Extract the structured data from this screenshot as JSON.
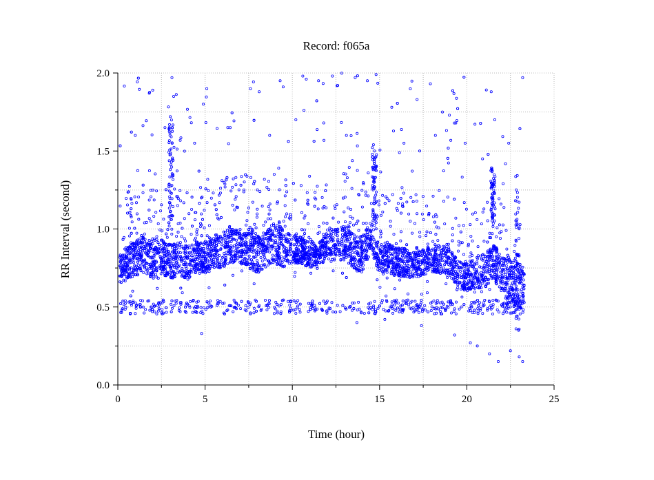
{
  "chart_data": {
    "type": "scatter",
    "title": "Record:  f065a",
    "xlabel": "Time (hour)",
    "ylabel": "RR Interval (second)",
    "xlim": [
      0,
      25
    ],
    "ylim": [
      0,
      2.0
    ],
    "xticks": [
      0,
      5,
      10,
      15,
      20,
      25
    ],
    "xtick_labels": [
      "0",
      "5",
      "10",
      "15",
      "20",
      "25"
    ],
    "xminor": [
      2.5,
      7.5,
      12.5,
      17.5,
      22.5
    ],
    "yticks": [
      0,
      0.5,
      1.0,
      1.5,
      2.0
    ],
    "ytick_labels": [
      "0.0",
      "0.5",
      "1.0",
      "1.5",
      "2.0"
    ],
    "yminor": [
      0.25,
      0.75,
      1.25,
      1.75
    ],
    "grid": true,
    "marker_color": "#0000ff",
    "series": [
      {
        "name": "",
        "x_range": [
          0.1,
          23.3
        ],
        "band": [
          [
            0.1,
            0.65,
            0.85
          ],
          [
            0.5,
            0.68,
            0.88
          ],
          [
            1.0,
            0.7,
            0.92
          ],
          [
            1.5,
            0.72,
            0.95
          ],
          [
            2.0,
            0.68,
            0.92
          ],
          [
            2.5,
            0.7,
            0.95
          ],
          [
            3.0,
            0.68,
            0.9
          ],
          [
            3.5,
            0.7,
            0.92
          ],
          [
            4.0,
            0.68,
            0.9
          ],
          [
            4.5,
            0.72,
            0.92
          ],
          [
            5.0,
            0.7,
            0.92
          ],
          [
            5.5,
            0.75,
            0.95
          ],
          [
            6.0,
            0.75,
            0.98
          ],
          [
            6.5,
            0.78,
            1.0
          ],
          [
            7.0,
            0.78,
            1.0
          ],
          [
            7.5,
            0.75,
            1.0
          ],
          [
            8.0,
            0.72,
            0.95
          ],
          [
            8.5,
            0.75,
            0.98
          ],
          [
            9.0,
            0.78,
            1.05
          ],
          [
            9.5,
            0.75,
            1.0
          ],
          [
            10.0,
            0.78,
            0.95
          ],
          [
            10.5,
            0.78,
            0.95
          ],
          [
            11.0,
            0.75,
            0.9
          ],
          [
            11.5,
            0.78,
            0.92
          ],
          [
            12.0,
            0.8,
            0.98
          ],
          [
            12.5,
            0.8,
            1.0
          ],
          [
            13.0,
            0.8,
            1.02
          ],
          [
            13.5,
            0.75,
            0.98
          ],
          [
            14.0,
            0.72,
            0.95
          ],
          [
            14.5,
            0.85,
            1.05
          ],
          [
            15.0,
            0.7,
            0.9
          ],
          [
            15.5,
            0.72,
            0.92
          ],
          [
            16.0,
            0.7,
            0.88
          ],
          [
            16.5,
            0.68,
            0.88
          ],
          [
            17.0,
            0.68,
            0.85
          ],
          [
            17.5,
            0.7,
            0.88
          ],
          [
            18.0,
            0.72,
            0.88
          ],
          [
            18.5,
            0.72,
            0.9
          ],
          [
            19.0,
            0.7,
            0.88
          ],
          [
            19.5,
            0.62,
            0.8
          ],
          [
            20.0,
            0.6,
            0.78
          ],
          [
            20.5,
            0.62,
            0.82
          ],
          [
            21.0,
            0.62,
            0.85
          ],
          [
            21.5,
            0.68,
            0.9
          ],
          [
            22.0,
            0.6,
            0.85
          ],
          [
            22.5,
            0.5,
            0.8
          ],
          [
            23.0,
            0.5,
            0.78
          ],
          [
            23.3,
            0.45,
            0.75
          ]
        ],
        "lower_cluster": 0.5,
        "outliers": [
          [
            3.1,
            1.97
          ],
          [
            3.2,
            1.85
          ],
          [
            1.8,
            1.87
          ],
          [
            2.0,
            1.89
          ],
          [
            5.1,
            1.9
          ],
          [
            4.9,
            1.8
          ],
          [
            7.6,
            1.9
          ],
          [
            8.1,
            1.88
          ],
          [
            9.3,
            1.95
          ],
          [
            10.6,
            1.98
          ],
          [
            11.5,
            1.95
          ],
          [
            12.3,
            1.98
          ],
          [
            12.6,
            1.92
          ],
          [
            13.6,
            1.97
          ],
          [
            14.3,
            1.95
          ],
          [
            14.8,
            1.99
          ],
          [
            15.7,
            1.78
          ],
          [
            18.6,
            1.75
          ],
          [
            19.0,
            1.73
          ],
          [
            21.4,
            1.88
          ],
          [
            23.2,
            1.97
          ],
          [
            1.0,
            1.6
          ],
          [
            2.7,
            1.65
          ],
          [
            4.4,
            1.55
          ],
          [
            6.3,
            1.65
          ],
          [
            8.7,
            1.6
          ],
          [
            10.2,
            1.7
          ],
          [
            11.8,
            1.68
          ],
          [
            13.1,
            1.6
          ],
          [
            16.4,
            1.55
          ],
          [
            17.3,
            1.5
          ],
          [
            18.2,
            1.6
          ],
          [
            19.9,
            1.55
          ],
          [
            20.9,
            1.45
          ],
          [
            21.6,
            1.7
          ],
          [
            22.4,
            1.55
          ],
          [
            4.8,
            0.33
          ],
          [
            20.2,
            0.27
          ],
          [
            20.6,
            0.25
          ],
          [
            21.3,
            0.2
          ],
          [
            21.8,
            0.15
          ],
          [
            22.5,
            0.22
          ],
          [
            23.0,
            0.18
          ],
          [
            23.2,
            0.15
          ],
          [
            17.4,
            0.38
          ],
          [
            19.3,
            0.32
          ],
          [
            13.7,
            0.4
          ],
          [
            15.3,
            0.42
          ]
        ]
      }
    ]
  }
}
